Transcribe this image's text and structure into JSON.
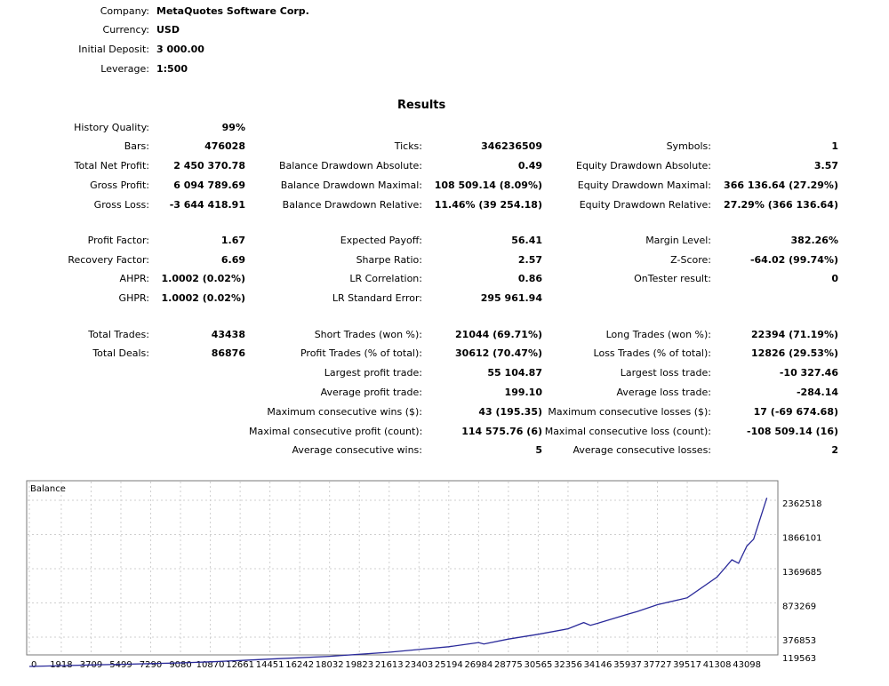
{
  "header": [
    {
      "label": "Company:",
      "value": "MetaQuotes Software Corp."
    },
    {
      "label": "Currency:",
      "value": "USD"
    },
    {
      "label": "Initial Deposit:",
      "value": "3 000.00"
    },
    {
      "label": "Leverage:",
      "value": "1:500"
    }
  ],
  "results_title": "Results",
  "stats": {
    "history_quality": {
      "label": "History Quality:",
      "value": "99%"
    },
    "bars": {
      "label": "Bars:",
      "value": "476028"
    },
    "total_net_profit": {
      "label": "Total Net Profit:",
      "value": "2 450 370.78"
    },
    "gross_profit": {
      "label": "Gross Profit:",
      "value": "6 094 789.69"
    },
    "gross_loss": {
      "label": "Gross Loss:",
      "value": "-3 644 418.91"
    },
    "profit_factor": {
      "label": "Profit Factor:",
      "value": "1.67"
    },
    "recovery_factor": {
      "label": "Recovery Factor:",
      "value": "6.69"
    },
    "ahpr": {
      "label": "AHPR:",
      "value": "1.0002 (0.02%)"
    },
    "ghpr": {
      "label": "GHPR:",
      "value": "1.0002 (0.02%)"
    },
    "total_trades": {
      "label": "Total Trades:",
      "value": "43438"
    },
    "total_deals": {
      "label": "Total Deals:",
      "value": "86876"
    },
    "ticks": {
      "label": "Ticks:",
      "value": "346236509"
    },
    "balance_dd_abs": {
      "label": "Balance Drawdown Absolute:",
      "value": "0.49"
    },
    "balance_dd_max": {
      "label": "Balance Drawdown Maximal:",
      "value": "108 509.14 (8.09%)"
    },
    "balance_dd_rel": {
      "label": "Balance Drawdown Relative:",
      "value": "11.46% (39 254.18)"
    },
    "expected_payoff": {
      "label": "Expected Payoff:",
      "value": "56.41"
    },
    "sharpe_ratio": {
      "label": "Sharpe Ratio:",
      "value": "2.57"
    },
    "lr_correlation": {
      "label": "LR Correlation:",
      "value": "0.86"
    },
    "lr_std_error": {
      "label": "LR Standard Error:",
      "value": "295 961.94"
    },
    "short_trades": {
      "label": "Short Trades (won %):",
      "value": "21044 (69.71%)"
    },
    "profit_trades": {
      "label": "Profit Trades (% of total):",
      "value": "30612 (70.47%)"
    },
    "largest_profit": {
      "label": "Largest profit trade:",
      "value": "55 104.87"
    },
    "average_profit": {
      "label": "Average profit trade:",
      "value": "199.10"
    },
    "max_consec_wins": {
      "label": "Maximum consecutive wins ($):",
      "value": "43 (195.35)"
    },
    "maximal_consec_profit": {
      "label": "Maximal consecutive profit (count):",
      "value": "114 575.76 (6)"
    },
    "avg_consec_wins": {
      "label": "Average consecutive wins:",
      "value": "5"
    },
    "symbols": {
      "label": "Symbols:",
      "value": "1"
    },
    "equity_dd_abs": {
      "label": "Equity Drawdown Absolute:",
      "value": "3.57"
    },
    "equity_dd_max": {
      "label": "Equity Drawdown Maximal:",
      "value": "366 136.64 (27.29%)"
    },
    "equity_dd_rel": {
      "label": "Equity Drawdown Relative:",
      "value": "27.29% (366 136.64)"
    },
    "margin_level": {
      "label": "Margin Level:",
      "value": "382.26%"
    },
    "z_score": {
      "label": "Z-Score:",
      "value": "-64.02 (99.74%)"
    },
    "ontester": {
      "label": "OnTester result:",
      "value": "0"
    },
    "long_trades": {
      "label": "Long Trades (won %):",
      "value": "22394 (71.19%)"
    },
    "loss_trades": {
      "label": "Loss Trades (% of total):",
      "value": "12826 (29.53%)"
    },
    "largest_loss": {
      "label": "Largest loss trade:",
      "value": "-10 327.46"
    },
    "average_loss": {
      "label": "Average loss trade:",
      "value": "-284.14"
    },
    "max_consec_losses": {
      "label": "Maximum consecutive losses ($):",
      "value": "17 (-69 674.68)"
    },
    "maximal_consec_loss": {
      "label": "Maximal consecutive loss (count):",
      "value": "-108 509.14 (16)"
    },
    "avg_consec_losses": {
      "label": "Average consecutive losses:",
      "value": "2"
    }
  },
  "chart_data": {
    "type": "line",
    "title": "Balance",
    "line_color": "#2a2a9a",
    "x_ticks": [
      0,
      1918,
      3709,
      5499,
      7290,
      9080,
      10870,
      12661,
      14451,
      16242,
      18032,
      19823,
      21613,
      23403,
      25194,
      26984,
      28775,
      30565,
      32356,
      34146,
      35937,
      37727,
      39517,
      41308,
      43098
    ],
    "y_ticks": [
      119563,
      376853,
      873269,
      1369685,
      1866101,
      2362518
    ],
    "xlim": [
      0,
      44800
    ],
    "grid": true,
    "series": [
      {
        "x": [
          0,
          1918,
          3709,
          5499,
          7290,
          9080,
          10870,
          12661,
          14451,
          16242,
          18032,
          19823,
          21613,
          23403,
          25194,
          26984,
          27300,
          28775,
          30565,
          32356,
          33300,
          33700,
          34146,
          35937,
          36500,
          37727,
          39000,
          39517,
          41308,
          42200,
          42600,
          43098,
          43500,
          44300
        ],
        "y": [
          3000,
          15000,
          25000,
          35000,
          45000,
          55000,
          70000,
          90000,
          110000,
          130000,
          150000,
          180000,
          210000,
          250000,
          290000,
          350000,
          330000,
          400000,
          470000,
          550000,
          640000,
          600000,
          630000,
          760000,
          800000,
          900000,
          970000,
          1000000,
          1300000,
          1550000,
          1500000,
          1750000,
          1850000,
          2450000
        ]
      }
    ]
  }
}
